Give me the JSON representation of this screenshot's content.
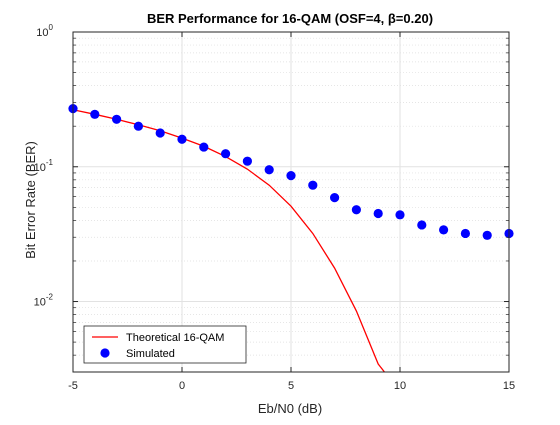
{
  "chart_data": {
    "type": "scatter",
    "title": "BER Performance for 16-QAM (OSF=4, β=0.20)",
    "xlabel": "Eb/N0 (dB)",
    "ylabel": "Bit Error Rate (BER)",
    "xlim": [
      -5,
      15
    ],
    "ylim": [
      0.003,
      1
    ],
    "yscale": "log",
    "grid": true,
    "minor_grid": true,
    "legend_position": "bottom-left",
    "x_ticks": [
      -5,
      0,
      5,
      10,
      15
    ],
    "x_tick_labels": [
      "-5",
      "0",
      "5",
      "10",
      "15"
    ],
    "y_ticks": [
      {
        "value": 1,
        "base": "10",
        "exp": "0"
      },
      {
        "value": 0.1,
        "base": "10",
        "exp": "-1"
      },
      {
        "value": 0.01,
        "base": "10",
        "exp": "-2"
      }
    ],
    "series": [
      {
        "name": "Theoretical 16-QAM",
        "kind": "line",
        "color": "#ff0000",
        "x": [
          -5,
          -4,
          -3,
          -2,
          -1,
          0,
          1,
          2,
          3,
          4,
          5,
          6,
          7,
          8,
          9,
          9.3
        ],
        "y": [
          0.265,
          0.245,
          0.225,
          0.205,
          0.185,
          0.163,
          0.142,
          0.119,
          0.096,
          0.073,
          0.051,
          0.032,
          0.0177,
          0.0085,
          0.00344,
          0.00298
        ]
      },
      {
        "name": "Simulated",
        "kind": "markers",
        "color": "#0000ff",
        "x": [
          -5,
          -4,
          -3,
          -2,
          -1,
          0,
          1,
          2,
          3,
          4,
          5,
          6,
          7,
          8,
          9,
          10,
          11,
          12,
          13,
          14,
          15
        ],
        "y": [
          0.27,
          0.245,
          0.225,
          0.2,
          0.178,
          0.16,
          0.14,
          0.125,
          0.11,
          0.095,
          0.086,
          0.073,
          0.059,
          0.048,
          0.045,
          0.044,
          0.037,
          0.034,
          0.032,
          0.031,
          0.032
        ]
      }
    ]
  }
}
